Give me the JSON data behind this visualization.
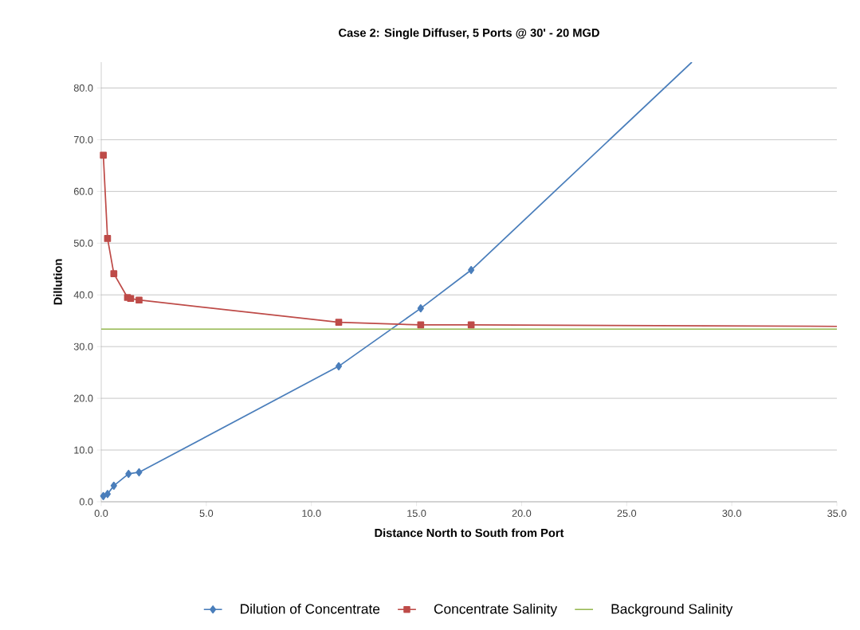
{
  "chart_data": {
    "type": "line",
    "title": "Case 2: Single Diffuser, 5 Ports  @ 30' - 20 MGD",
    "xlabel": "Distance North to South from Port",
    "ylabel": "Dillution",
    "series": [
      {
        "name": "Dilution of Concentrate",
        "color": "#4a7ebb",
        "marker": "diamond",
        "x": [
          0.1,
          0.3,
          0.6,
          1.3,
          1.8,
          11.3,
          15.2,
          17.6,
          28.1
        ],
        "values": [
          1.1,
          1.5,
          3.1,
          5.4,
          5.7,
          26.2,
          37.4,
          44.8,
          85.0
        ]
      },
      {
        "name": "Concentrate Salinity",
        "color": "#be4b48",
        "marker": "square",
        "x": [
          0.1,
          0.3,
          0.6,
          1.25,
          1.4,
          1.8,
          11.3,
          15.2,
          17.6,
          35
        ],
        "values": [
          67.0,
          50.9,
          44.1,
          39.5,
          39.3,
          39.0,
          34.7,
          34.2,
          34.2,
          33.9
        ]
      },
      {
        "name": "Background Salinity",
        "color": "#98b954",
        "marker": "none",
        "x": [
          0,
          35
        ],
        "values": [
          33.4,
          33.4
        ]
      }
    ],
    "xlim": [
      0,
      35
    ],
    "ylim": [
      0,
      85
    ],
    "xticks": [
      {
        "value": 0,
        "label": "0.0"
      },
      {
        "value": 5,
        "label": "5.0"
      },
      {
        "value": 10,
        "label": "10.0"
      },
      {
        "value": 15,
        "label": "15.0"
      },
      {
        "value": 20,
        "label": "20.0"
      },
      {
        "value": 25,
        "label": "25.0"
      },
      {
        "value": 30,
        "label": "30.0"
      },
      {
        "value": 35,
        "label": "35.0"
      }
    ],
    "yticks": [
      {
        "value": 0,
        "label": "0.0"
      },
      {
        "value": 10,
        "label": "10.0"
      },
      {
        "value": 20,
        "label": "20.0"
      },
      {
        "value": 30,
        "label": "30.0"
      },
      {
        "value": 40,
        "label": "40.0"
      },
      {
        "value": 50,
        "label": "50.0"
      },
      {
        "value": 60,
        "label": "60.0"
      },
      {
        "value": 70,
        "label": "70.0"
      },
      {
        "value": 80,
        "label": "80.0"
      }
    ],
    "grid": "y",
    "legend": "bottom",
    "line_style": "solid"
  }
}
